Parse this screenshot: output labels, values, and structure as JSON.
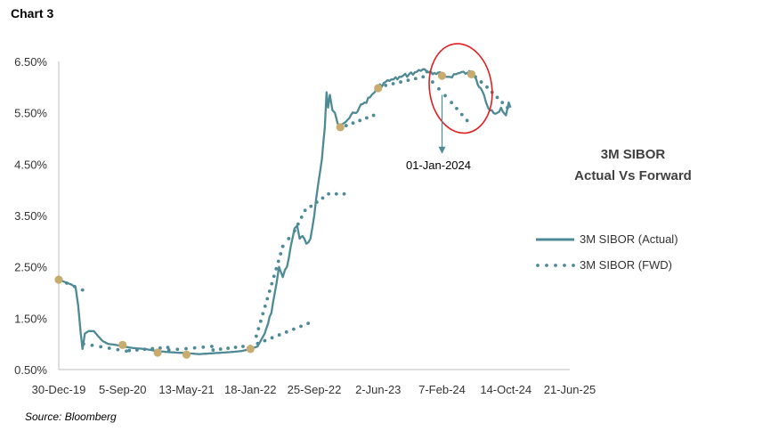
{
  "header": {
    "chart_label": "Chart 3"
  },
  "footer": {
    "source": "Source: Bloomberg"
  },
  "colors": {
    "series": "#4e8a96",
    "marker": "#c8ab6e",
    "highlight": "#e02020",
    "axis": "#bfbfbf"
  },
  "chart_data": {
    "type": "line",
    "title_lines": [
      "3M SIBOR",
      "Actual Vs Forward"
    ],
    "xlabel": "",
    "ylabel": "",
    "x_tick_labels": [
      "30-Dec-19",
      "5-Sep-20",
      "13-May-21",
      "18-Jan-22",
      "25-Sep-22",
      "2-Jun-23",
      "7-Feb-24",
      "14-Oct-24",
      "21-Jun-25"
    ],
    "x_tick_dates": [
      "2019-12-30",
      "2020-09-05",
      "2021-05-13",
      "2022-01-18",
      "2022-09-25",
      "2023-06-02",
      "2024-02-07",
      "2024-10-14",
      "2025-06-21"
    ],
    "y_tick_labels": [
      "0.50%",
      "1.50%",
      "2.50%",
      "3.50%",
      "4.50%",
      "5.50%",
      "6.50%"
    ],
    "ylim": [
      0.5,
      6.5
    ],
    "grid": false,
    "legend_position": "right",
    "series": [
      {
        "name": "3M SIBOR (Actual)",
        "style": "solid",
        "points": [
          [
            "2019-12-30",
            2.25
          ],
          [
            "2020-01-25",
            2.2
          ],
          [
            "2020-02-20",
            2.15
          ],
          [
            "2020-03-05",
            2.1
          ],
          [
            "2020-03-15",
            1.75
          ],
          [
            "2020-03-25",
            1.2
          ],
          [
            "2020-04-01",
            0.9
          ],
          [
            "2020-04-10",
            1.2
          ],
          [
            "2020-04-25",
            1.25
          ],
          [
            "2020-05-15",
            1.25
          ],
          [
            "2020-06-01",
            1.15
          ],
          [
            "2020-06-20",
            1.05
          ],
          [
            "2020-07-10",
            1.0
          ],
          [
            "2020-08-10",
            0.98
          ],
          [
            "2020-09-05",
            0.95
          ],
          [
            "2020-10-15",
            0.92
          ],
          [
            "2020-12-01",
            0.9
          ],
          [
            "2021-01-20",
            0.86
          ],
          [
            "2021-03-01",
            0.84
          ],
          [
            "2021-05-13",
            0.82
          ],
          [
            "2021-07-01",
            0.8
          ],
          [
            "2021-09-01",
            0.82
          ],
          [
            "2021-11-01",
            0.84
          ],
          [
            "2021-12-15",
            0.86
          ],
          [
            "2022-01-18",
            0.9
          ],
          [
            "2022-02-15",
            0.95
          ],
          [
            "2022-03-15",
            1.2
          ],
          [
            "2022-04-10",
            1.6
          ],
          [
            "2022-05-01",
            2.2
          ],
          [
            "2022-05-10",
            2.5
          ],
          [
            "2022-05-25",
            2.3
          ],
          [
            "2022-06-10",
            2.5
          ],
          [
            "2022-06-25",
            2.9
          ],
          [
            "2022-07-10",
            3.25
          ],
          [
            "2022-07-20",
            3.3
          ],
          [
            "2022-07-30",
            3.05
          ],
          [
            "2022-08-10",
            3.1
          ],
          [
            "2022-08-25",
            2.95
          ],
          [
            "2022-09-10",
            3.05
          ],
          [
            "2022-09-25",
            3.5
          ],
          [
            "2022-10-10",
            4.1
          ],
          [
            "2022-10-25",
            4.6
          ],
          [
            "2022-11-05",
            5.2
          ],
          [
            "2022-11-12",
            5.9
          ],
          [
            "2022-11-18",
            5.6
          ],
          [
            "2022-11-25",
            5.85
          ],
          [
            "2022-12-05",
            5.55
          ],
          [
            "2022-12-15",
            5.5
          ],
          [
            "2022-12-25",
            5.3
          ],
          [
            "2023-01-05",
            5.2
          ],
          [
            "2023-01-20",
            5.3
          ],
          [
            "2023-02-10",
            5.4
          ],
          [
            "2023-03-01",
            5.5
          ],
          [
            "2023-03-20",
            5.6
          ],
          [
            "2023-04-10",
            5.7
          ],
          [
            "2023-05-01",
            5.8
          ],
          [
            "2023-06-02",
            6.0
          ],
          [
            "2023-07-01",
            6.1
          ],
          [
            "2023-08-01",
            6.15
          ],
          [
            "2023-09-01",
            6.2
          ],
          [
            "2023-10-01",
            6.25
          ],
          [
            "2023-11-01",
            6.3
          ],
          [
            "2023-12-01",
            6.35
          ],
          [
            "2024-01-01",
            6.25
          ],
          [
            "2024-02-07",
            6.25
          ],
          [
            "2024-03-01",
            6.2
          ],
          [
            "2024-04-01",
            6.25
          ],
          [
            "2024-05-01",
            6.3
          ],
          [
            "2024-06-01",
            6.25
          ],
          [
            "2024-06-20",
            6.15
          ],
          [
            "2024-07-01",
            6.0
          ],
          [
            "2024-07-20",
            5.85
          ],
          [
            "2024-08-05",
            5.6
          ],
          [
            "2024-08-20",
            5.55
          ],
          [
            "2024-09-10",
            5.5
          ],
          [
            "2024-09-25",
            5.6
          ],
          [
            "2024-10-14",
            5.45
          ],
          [
            "2024-10-25",
            5.7
          ],
          [
            "2024-11-01",
            5.6
          ]
        ]
      },
      {
        "name": "3M SIBOR (FWD)",
        "style": "dotted",
        "segments": [
          [
            [
              "2019-12-30",
              2.25
            ],
            [
              "2020-04-01",
              2.05
            ]
          ],
          [
            [
              "2020-04-05",
              1.0
            ],
            [
              "2020-09-20",
              0.86
            ]
          ],
          [
            [
              "2020-10-01",
              0.87
            ],
            [
              "2021-03-01",
              0.93
            ]
          ],
          [
            [
              "2021-03-05",
              0.88
            ],
            [
              "2021-08-20",
              0.95
            ]
          ],
          [
            [
              "2021-08-25",
              0.88
            ],
            [
              "2021-12-20",
              0.95
            ]
          ],
          [
            [
              "2022-01-18",
              0.95
            ],
            [
              "2022-09-01",
              1.4
            ]
          ],
          [
            [
              "2022-02-10",
              1.15
            ],
            [
              "2022-05-25",
              2.9
            ]
          ],
          [
            [
              "2022-05-25",
              2.9
            ],
            [
              "2022-07-10",
              3.2
            ],
            [
              "2022-08-20",
              3.6
            ],
            [
              "2022-11-20",
              3.92
            ],
            [
              "2023-01-20",
              3.92
            ]
          ],
          [
            [
              "2023-01-01",
              5.2
            ],
            [
              "2023-05-15",
              5.45
            ]
          ],
          [
            [
              "2023-06-02",
              6.0
            ],
            [
              "2023-11-25",
              6.2
            ]
          ],
          [
            [
              "2023-12-10",
              6.3
            ],
            [
              "2024-01-01",
              6.1
            ],
            [
              "2024-03-15",
              5.7
            ],
            [
              "2024-05-15",
              5.35
            ]
          ],
          [
            [
              "2024-05-25",
              6.3
            ],
            [
              "2024-08-01",
              6.0
            ],
            [
              "2024-10-20",
              5.6
            ]
          ]
        ]
      }
    ],
    "markers": [
      [
        "2019-12-30",
        2.25
      ],
      [
        "2020-09-05",
        0.98
      ],
      [
        "2021-01-20",
        0.83
      ],
      [
        "2021-05-13",
        0.79
      ],
      [
        "2022-01-18",
        0.9
      ],
      [
        "2023-01-05",
        5.22
      ],
      [
        "2023-06-02",
        5.98
      ],
      [
        "2024-02-07",
        6.22
      ],
      [
        "2024-06-01",
        6.25
      ]
    ],
    "annotations": [
      {
        "text": "01-Jan-2024",
        "x": "2024-02-07",
        "y_from": 5.85,
        "y_to": 4.7
      }
    ],
    "highlight_ellipse": {
      "x_from": "2023-12-20",
      "x_to": "2024-08-20",
      "y_from": 5.1,
      "y_to": 6.85
    }
  }
}
